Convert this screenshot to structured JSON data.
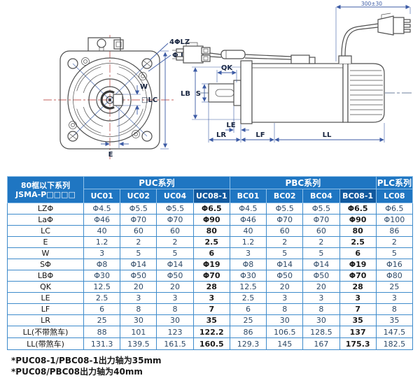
{
  "drawing": {
    "front": {
      "holes_label": "4ΦLZ",
      "pilot_label": "Φ La",
      "key_width_label": "W",
      "frame_label": "□LC",
      "offset_label": "E"
    },
    "side": {
      "key_length_label": "QK",
      "shaft_label": "S",
      "pilot_label": "LB",
      "front_gap_label": "LE",
      "shaft_length_label": "LR",
      "flange_label": "LF",
      "body_length_label": "LL",
      "cable_label": "300±30"
    }
  },
  "table": {
    "corner": {
      "line1": "80框以下系列",
      "line2": "JSMA-P□□□□"
    },
    "groups": [
      {
        "label": "PUC系列",
        "span": 4
      },
      {
        "label": "PBC系列",
        "span": 4
      },
      {
        "label": "PLC系列",
        "span": 1
      }
    ],
    "columns": [
      "UC01",
      "UC02",
      "UC04",
      "UC08-1",
      "BC01",
      "BC02",
      "BC04",
      "BC08-1",
      "LC08"
    ],
    "highlight_columns": [
      "UC08-1",
      "BC08-1"
    ],
    "rows": [
      {
        "label": "LZΦ",
        "values": [
          "Φ4.5",
          "Φ5.5",
          "Φ5.5",
          "Φ6.5",
          "Φ4.5",
          "Φ5.5",
          "Φ5.5",
          "Φ6.5",
          "Φ6.5"
        ]
      },
      {
        "label": "LaΦ",
        "values": [
          "Φ46",
          "Φ70",
          "Φ70",
          "Φ90",
          "Φ46",
          "Φ70",
          "Φ70",
          "Φ90",
          "Φ100"
        ]
      },
      {
        "label": "LC",
        "values": [
          "40",
          "60",
          "60",
          "80",
          "40",
          "60",
          "60",
          "80",
          "86"
        ]
      },
      {
        "label": "E",
        "values": [
          "1.2",
          "2",
          "2",
          "2.5",
          "1.2",
          "2",
          "2",
          "2.5",
          "2"
        ]
      },
      {
        "label": "W",
        "values": [
          "3",
          "5",
          "5",
          "6",
          "3",
          "5",
          "5",
          "6",
          "5"
        ]
      },
      {
        "label": "SΦ",
        "values": [
          "Φ8",
          "Φ14",
          "Φ14",
          "Φ19",
          "Φ8",
          "Φ14",
          "Φ14",
          "Φ19",
          "Φ16"
        ]
      },
      {
        "label": "LBΦ",
        "values": [
          "Φ30",
          "Φ50",
          "Φ50",
          "Φ70",
          "Φ30",
          "Φ50",
          "Φ50",
          "Φ70",
          "Φ80"
        ]
      },
      {
        "label": "QK",
        "values": [
          "12.5",
          "20",
          "20",
          "28",
          "12.5",
          "20",
          "20",
          "28",
          "25"
        ]
      },
      {
        "label": "LE",
        "values": [
          "2.5",
          "3",
          "3",
          "3",
          "2.5",
          "3",
          "3",
          "3",
          "3"
        ]
      },
      {
        "label": "LF",
        "values": [
          "6",
          "8",
          "8",
          "7",
          "6",
          "8",
          "8",
          "7",
          "8"
        ]
      },
      {
        "label": "LR",
        "values": [
          "25",
          "30",
          "30",
          "35",
          "25",
          "30",
          "30",
          "35",
          "35"
        ]
      },
      {
        "label": "LL(不带煞车)",
        "values": [
          "88",
          "101",
          "123",
          "122.2",
          "86",
          "106.5",
          "128.5",
          "137",
          "147.5"
        ]
      },
      {
        "label": "LL(带煞车)",
        "values": [
          "131.3",
          "139.5",
          "161.5",
          "160.5",
          "129.3",
          "145",
          "167",
          "175.3",
          "182.5"
        ]
      }
    ]
  },
  "footnotes": [
    "*PUC08-1/PBC08-1出力轴为35mm",
    "*PUC08/PBC08出力轴为40mm"
  ],
  "colors": {
    "header_blue": "#1F76C2",
    "header_highlight": "#12599E",
    "table_border": "#3E8BCB",
    "dimension_blue": "#3C5BA5",
    "centerline_red": "#C4605C",
    "line_gray": "#4F4F4F"
  }
}
